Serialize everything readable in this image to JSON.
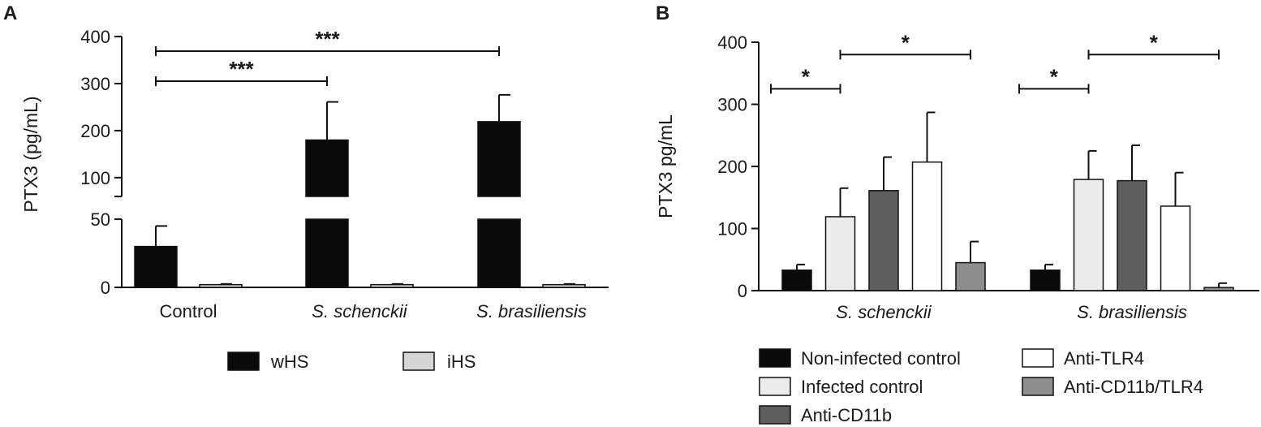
{
  "chart_data": [
    {
      "panel": "A",
      "type": "bar",
      "ylabel": "PTX3 (pg/mL)",
      "categories": [
        "Control",
        "S. schenckii",
        "S. brasiliensis"
      ],
      "categories_italic": [
        false,
        true,
        true
      ],
      "yaxis_break": {
        "lower_range": [
          0,
          50
        ],
        "upper_range": [
          60,
          400
        ],
        "lower_ticks": [
          0,
          50
        ],
        "upper_ticks": [
          100,
          200,
          300,
          400
        ]
      },
      "series": [
        {
          "name": "wHS",
          "color": "#0a0a0a",
          "values": [
            30,
            180,
            219
          ],
          "errors": [
            15,
            81,
            57
          ]
        },
        {
          "name": "iHS",
          "color": "#d6d6d6",
          "values": [
            2,
            2,
            2
          ],
          "errors": [
            0.5,
            0.5,
            0.5
          ]
        }
      ],
      "significance": [
        {
          "from": 0,
          "to": 1,
          "label": "***",
          "y": 305
        },
        {
          "from": 0,
          "to": 2,
          "label": "***",
          "y": 369
        }
      ]
    },
    {
      "panel": "B",
      "type": "bar",
      "ylabel": "PTX3 pg/mL",
      "categories": [
        "S. schenckii",
        "S. brasiliensis"
      ],
      "categories_italic": [
        true,
        true
      ],
      "ylim": [
        0,
        400
      ],
      "yticks": [
        0,
        100,
        200,
        300,
        400
      ],
      "series": [
        {
          "name": "Non-infected control",
          "color": "#0a0a0a",
          "values": [
            33,
            33
          ],
          "errors": [
            9,
            9
          ]
        },
        {
          "name": "Infected control",
          "color": "#ececec",
          "values": [
            119,
            179
          ],
          "errors": [
            46,
            46
          ]
        },
        {
          "name": "Anti-CD11b",
          "color": "#5e5e5e",
          "values": [
            161,
            177
          ],
          "errors": [
            54,
            57
          ]
        },
        {
          "name": "Anti-TLR4",
          "color": "#ffffff",
          "values": [
            207,
            136
          ],
          "errors": [
            80,
            54
          ]
        },
        {
          "name": "Anti-CD11b/TLR4",
          "color": "#8e8e8e",
          "values": [
            45,
            5
          ],
          "errors": [
            34,
            7
          ]
        }
      ],
      "significance": [
        {
          "group": 0,
          "from_series": 0,
          "to_series": 1,
          "label": "*",
          "y": 325
        },
        {
          "group": 0,
          "from_series": 1,
          "to_series": 4,
          "label": "*",
          "y": 380
        },
        {
          "group": 1,
          "from_series": 0,
          "to_series": 1,
          "label": "*",
          "y": 325
        },
        {
          "group": 1,
          "from_series": 1,
          "to_series": 4,
          "label": "*",
          "y": 380
        }
      ]
    }
  ]
}
